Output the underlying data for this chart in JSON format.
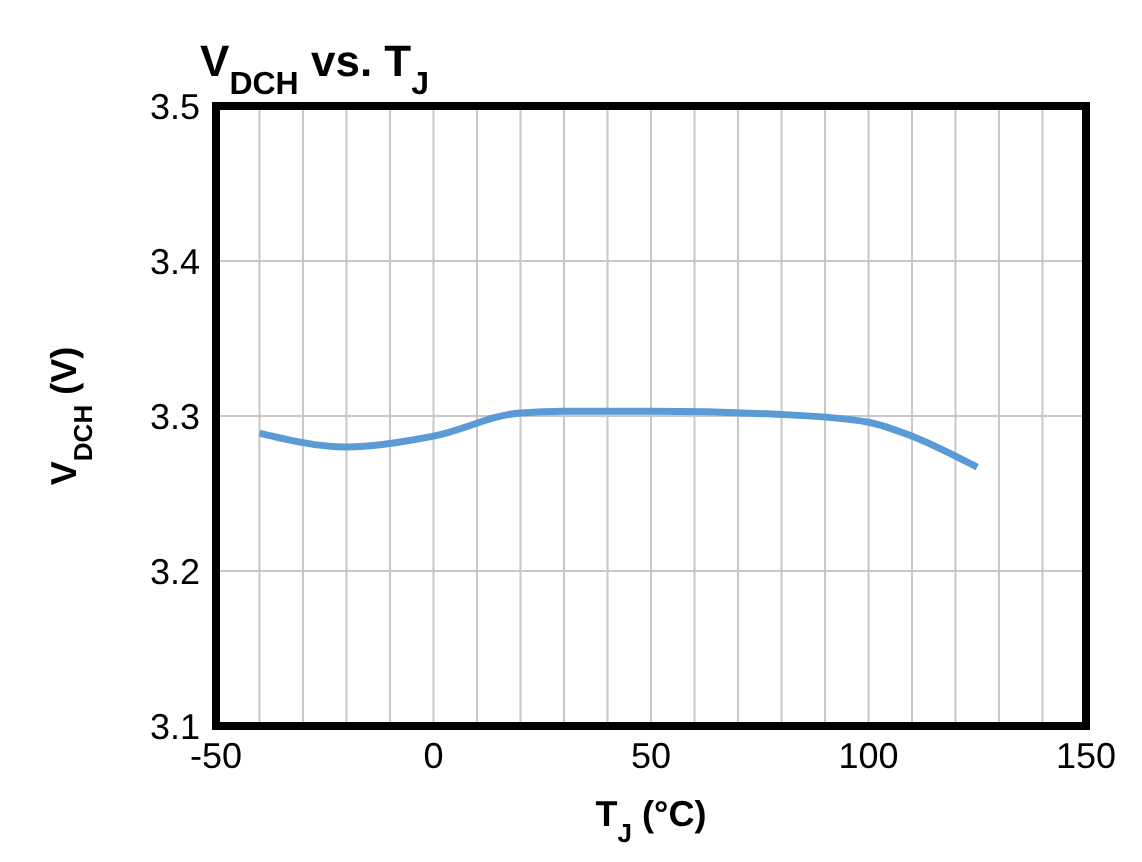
{
  "chart_data": {
    "type": "line",
    "title": "V$_{DCH}$ vs. T$_{J}$",
    "xlabel": "T$_{J}$ (°C)",
    "ylabel": "V$_{DCH}$ (V)",
    "x": [
      -40,
      -20,
      0,
      20,
      30,
      50,
      80,
      100,
      110,
      125
    ],
    "series": [
      {
        "color": "#5b9bd5",
        "values": [
          3.289,
          3.28,
          3.287,
          3.302,
          3.303,
          3.303,
          3.301,
          3.296,
          3.287,
          3.267
        ]
      }
    ],
    "xlim": [
      -50,
      150
    ],
    "xticks": [
      -50,
      {
        "value": -40,
        "label": null
      },
      {
        "value": -30,
        "label": null
      },
      {
        "value": -20,
        "label": null
      },
      {
        "value": -10,
        "label": null
      },
      0,
      {
        "value": 10,
        "label": null
      },
      {
        "value": 20,
        "label": null
      },
      {
        "value": 30,
        "label": null
      },
      {
        "value": 40,
        "label": null
      },
      50,
      {
        "value": 60,
        "label": null
      },
      {
        "value": 70,
        "label": null
      },
      {
        "value": 80,
        "label": null
      },
      {
        "value": 90,
        "label": null
      },
      100,
      {
        "value": 110,
        "label": null
      },
      {
        "value": 120,
        "label": null
      },
      {
        "value": 130,
        "label": null
      },
      {
        "value": 140,
        "label": null
      },
      150
    ],
    "ylim": [
      3.1,
      3.5
    ],
    "yticks": [
      3.1,
      3.2,
      3.3,
      3.4,
      3.5
    ],
    "grid": true,
    "marker": "none",
    "line_style": "solid"
  }
}
